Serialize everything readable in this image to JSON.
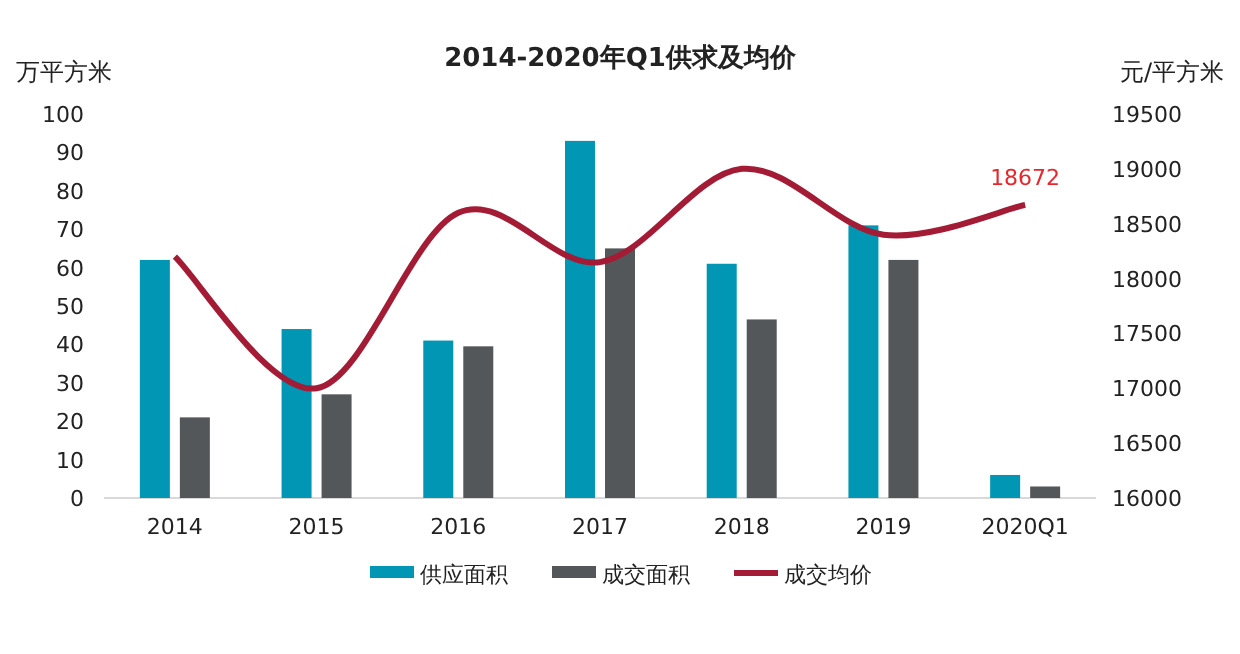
{
  "chart_data": {
    "type": "bar",
    "title": "2014-2020年Q1供求及均价",
    "ylabel": "万平方米",
    "y2label": "元/平方米",
    "categories": [
      "2014",
      "2015",
      "2016",
      "2017",
      "2018",
      "2019",
      "2020Q1"
    ],
    "series": [
      {
        "name": "供应面积",
        "color": "#0096b4",
        "values": [
          62,
          44,
          41,
          93,
          61,
          71,
          6
        ]
      },
      {
        "name": "成交面积",
        "color": "#54575a",
        "values": [
          21,
          27,
          39.5,
          65,
          46.5,
          62,
          3
        ]
      },
      {
        "name": "成交均价",
        "type": "line",
        "axis": "y2",
        "color": "#a31b34",
        "values": [
          18200,
          17000,
          18600,
          18150,
          19000,
          18400,
          18672
        ],
        "value_labels": [
          null,
          null,
          null,
          null,
          null,
          null,
          "18672"
        ]
      }
    ],
    "ylim": [
      0,
      100
    ],
    "yticks": [
      0,
      10,
      20,
      30,
      40,
      50,
      60,
      70,
      80,
      90,
      100
    ],
    "y2lim": [
      16000,
      19500
    ],
    "y2ticks": [
      16000,
      16500,
      17000,
      17500,
      18000,
      18500,
      19000,
      19500
    ],
    "grid": false,
    "legend": "bottom",
    "marker": "none"
  }
}
